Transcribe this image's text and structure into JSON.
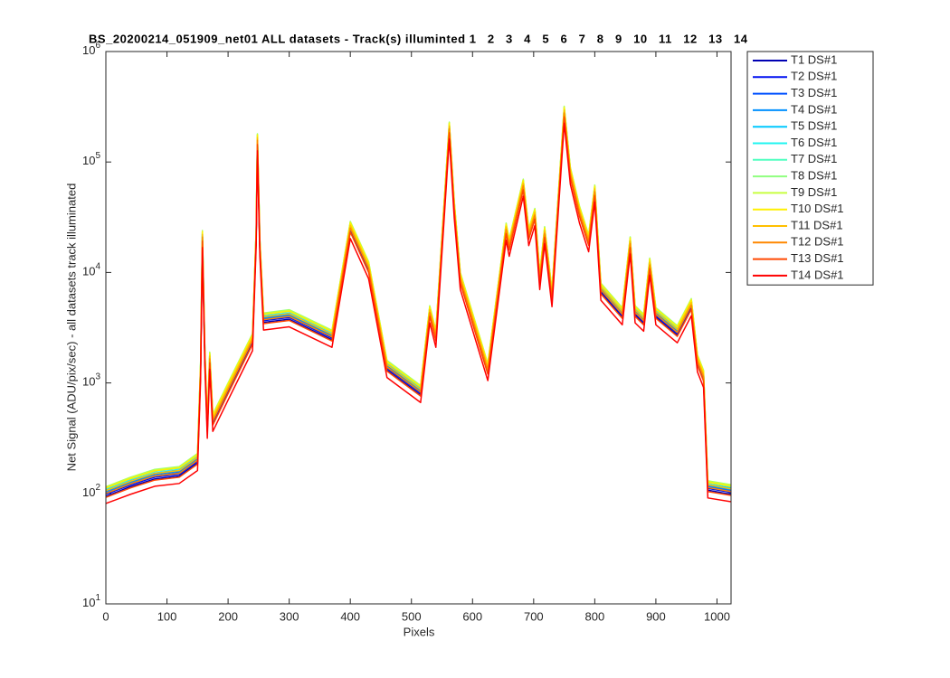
{
  "chart_data": {
    "type": "line",
    "title": "BS_20200214_051909_net01 ALL datasets - Track(s) illuminted 1   2   3   4   5   6   7   8   9   10   11   12   13   14",
    "xlabel": "Pixels",
    "ylabel": "Net Signal (ADU/pix/sec) - all datasets track illuminated",
    "log_y": true,
    "grid": false,
    "legend": "northeastoutside",
    "xlim": [
      0,
      1023
    ],
    "xticks": [
      0,
      100,
      200,
      300,
      400,
      500,
      600,
      700,
      800,
      900,
      1000
    ],
    "ylim": [
      10,
      1000000
    ],
    "yticks": [
      {
        "value": 10,
        "label": "10^1"
      },
      {
        "value": 100,
        "label": "10^2"
      },
      {
        "value": 1000,
        "label": "10^3"
      },
      {
        "value": 10000,
        "label": "10^4"
      },
      {
        "value": 100000,
        "label": "10^5"
      },
      {
        "value": 1000000,
        "label": "10^6"
      }
    ],
    "x": [
      0,
      40,
      80,
      120,
      150,
      155,
      158,
      162,
      166,
      170,
      175,
      200,
      240,
      246,
      248,
      252,
      258,
      300,
      370,
      400,
      430,
      460,
      515,
      530,
      540,
      562,
      570,
      580,
      625,
      655,
      660,
      683,
      692,
      702,
      710,
      718,
      730,
      750,
      760,
      775,
      790,
      800,
      810,
      845,
      858,
      866,
      880,
      890,
      900,
      935,
      958,
      968,
      978,
      985,
      1023
    ],
    "series": [
      {
        "name": "T1 DS#1",
        "color": "#0000b3",
        "values": [
          94,
          115,
          135,
          144,
          189,
          1230,
          19700,
          1640,
          369,
          1560,
          426,
          820,
          2300,
          20500,
          148000,
          16400,
          3530,
          3770,
          2460,
          23800,
          10250,
          1310,
          779,
          4100,
          2460,
          189000,
          36900,
          8200,
          1230,
          23000,
          16400,
          57400,
          20500,
          31200,
          8200,
          21300,
          5740,
          262000,
          73800,
          32800,
          18000,
          50800,
          6560,
          3940,
          17200,
          4100,
          3440,
          11100,
          3940,
          2710,
          4760,
          1480,
          1070,
          107,
          98
        ]
      },
      {
        "name": "T2 DS#1",
        "color": "#0010f0",
        "values": [
          98,
          119,
          140,
          149,
          196,
          1280,
          20400,
          1700,
          383,
          1620,
          442,
          850,
          2380,
          21300,
          153000,
          17000,
          3660,
          3910,
          2550,
          24700,
          10600,
          1360,
          808,
          4250,
          2550,
          196000,
          38300,
          8500,
          1280,
          23800,
          17000,
          59500,
          21300,
          32300,
          8500,
          22100,
          5950,
          272000,
          76500,
          34000,
          18700,
          52700,
          6800,
          4080,
          17900,
          4250,
          3570,
          11500,
          4080,
          2810,
          4930,
          1530,
          1110,
          111,
          102
        ]
      },
      {
        "name": "T3 DS#1",
        "color": "#0050ff",
        "values": [
          101,
          123,
          145,
          154,
          202,
          1320,
          21100,
          1760,
          396,
          1670,
          458,
          880,
          2460,
          22000,
          158000,
          17600,
          3780,
          4050,
          2640,
          25500,
          11000,
          1410,
          836,
          4400,
          2640,
          202000,
          39600,
          8800,
          1320,
          24600,
          17600,
          61600,
          22000,
          33400,
          8800,
          22900,
          6160,
          282000,
          79200,
          35200,
          19400,
          54600,
          7040,
          4220,
          18500,
          4400,
          3700,
          11900,
          4220,
          2900,
          5100,
          1580,
          1140,
          114,
          106
        ]
      },
      {
        "name": "T4 DS#1",
        "color": "#0090ff",
        "values": [
          104,
          126,
          149,
          158,
          207,
          1350,
          21600,
          1800,
          405,
          1710,
          468,
          900,
          2520,
          22500,
          162000,
          18000,
          3870,
          4140,
          2700,
          26100,
          11300,
          1440,
          855,
          4500,
          2700,
          207000,
          40500,
          9000,
          1350,
          25200,
          18000,
          63000,
          22500,
          34200,
          9000,
          23400,
          6300,
          288000,
          81000,
          36000,
          19800,
          55800,
          7200,
          4320,
          18900,
          4500,
          3780,
          12200,
          4320,
          2970,
          5220,
          1620,
          1170,
          117,
          108
        ]
      },
      {
        "name": "T5 DS#1",
        "color": "#00c8ff",
        "values": [
          107,
          130,
          153,
          163,
          214,
          1400,
          22300,
          1860,
          419,
          1770,
          484,
          930,
          2600,
          23300,
          167000,
          18600,
          4000,
          4280,
          2790,
          27000,
          11600,
          1490,
          884,
          4650,
          2790,
          214000,
          41900,
          9300,
          1400,
          26000,
          18600,
          65100,
          23300,
          35300,
          9300,
          24200,
          6510,
          298000,
          83700,
          37200,
          20500,
          57700,
          7440,
          4460,
          19500,
          4650,
          3910,
          12600,
          4460,
          3070,
          5390,
          1670,
          1210,
          121,
          112
        ]
      },
      {
        "name": "T6 DS#1",
        "color": "#20f5f0",
        "values": [
          110,
          134,
          158,
          168,
          221,
          1440,
          23000,
          1920,
          432,
          1820,
          499,
          960,
          2690,
          24000,
          173000,
          19200,
          4130,
          4420,
          2880,
          27800,
          12000,
          1540,
          912,
          4800,
          2880,
          221000,
          43200,
          9600,
          1440,
          26900,
          19200,
          67200,
          24000,
          36500,
          9600,
          25000,
          6720,
          307000,
          86400,
          38400,
          21100,
          59500,
          7680,
          4610,
          20200,
          4800,
          4030,
          13000,
          4610,
          3170,
          5570,
          1730,
          1250,
          125,
          115
        ]
      },
      {
        "name": "T7 DS#1",
        "color": "#50ffc0",
        "values": [
          113,
          137,
          162,
          172,
          225,
          1470,
          23500,
          1960,
          441,
          1860,
          510,
          980,
          2740,
          24500,
          176000,
          19600,
          4210,
          4510,
          2940,
          28400,
          12300,
          1570,
          931,
          4900,
          2940,
          225000,
          44100,
          9800,
          1470,
          27400,
          19600,
          68600,
          24500,
          37200,
          9800,
          25500,
          6860,
          314000,
          88200,
          39200,
          21600,
          60800,
          7840,
          4700,
          20600,
          4900,
          4120,
          13200,
          4700,
          3230,
          5680,
          1760,
          1270,
          127,
          118
        ]
      },
      {
        "name": "T8 DS#1",
        "color": "#90ff80",
        "values": [
          115,
          140,
          165,
          175,
          230,
          1500,
          24000,
          2000,
          450,
          1900,
          520,
          1000,
          2800,
          25000,
          180000,
          20000,
          4300,
          4600,
          3000,
          29000,
          12500,
          1600,
          950,
          5000,
          3000,
          230000,
          45000,
          10000,
          1500,
          28000,
          20000,
          70000,
          25000,
          38000,
          10000,
          26000,
          7000,
          320000,
          90000,
          40000,
          22000,
          62000,
          8000,
          4800,
          21000,
          5000,
          4200,
          13500,
          4800,
          3300,
          5800,
          1800,
          1300,
          130,
          120
        ]
      },
      {
        "name": "T9 DS#1",
        "color": "#c8ff40",
        "values": [
          114,
          139,
          163,
          173,
          228,
          1490,
          23800,
          1980,
          446,
          1880,
          515,
          990,
          2770,
          24800,
          178000,
          19800,
          4260,
          4550,
          2970,
          28700,
          12400,
          1580,
          941,
          4950,
          2970,
          228000,
          44600,
          9900,
          1490,
          27700,
          19800,
          69300,
          24800,
          37600,
          9900,
          25700,
          6930,
          317000,
          89100,
          39600,
          21800,
          61400,
          7920,
          4750,
          20800,
          4950,
          4160,
          13400,
          4750,
          3270,
          5740,
          1780,
          1290,
          129,
          119
        ]
      },
      {
        "name": "T10 DS#1",
        "color": "#fff000",
        "values": [
          112,
          136,
          160,
          170,
          223,
          1460,
          23300,
          1940,
          437,
          1840,
          504,
          970,
          2720,
          24300,
          175000,
          19400,
          4170,
          4460,
          2910,
          28100,
          12100,
          1550,
          922,
          4850,
          2910,
          223000,
          43700,
          9700,
          1460,
          27200,
          19400,
          67900,
          24300,
          36900,
          9700,
          25200,
          6790,
          310000,
          87300,
          38800,
          21300,
          60100,
          7760,
          4660,
          20400,
          4850,
          4070,
          13100,
          4660,
          3200,
          5630,
          1750,
          1260,
          126,
          116
        ]
      },
      {
        "name": "T11 DS#1",
        "color": "#ffc000",
        "values": [
          106,
          129,
          152,
          161,
          212,
          1380,
          22100,
          1840,
          414,
          1750,
          478,
          920,
          2580,
          23000,
          166000,
          18400,
          3960,
          4230,
          2760,
          26700,
          11500,
          1470,
          874,
          4600,
          2760,
          212000,
          41400,
          9200,
          1380,
          25800,
          18400,
          64400,
          23000,
          35000,
          9200,
          23900,
          6440,
          294000,
          82800,
          36800,
          20200,
          57000,
          7360,
          4420,
          19300,
          4600,
          3860,
          12400,
          4420,
          3040,
          5340,
          1660,
          1200,
          120,
          110
        ]
      },
      {
        "name": "T12 DS#1",
        "color": "#ff8800",
        "values": [
          100,
          122,
          144,
          152,
          200,
          1310,
          20900,
          1740,
          392,
          1650,
          452,
          870,
          2440,
          21800,
          157000,
          17400,
          3740,
          4000,
          2610,
          25200,
          10900,
          1390,
          827,
          4350,
          2610,
          200000,
          39200,
          8700,
          1310,
          24400,
          17400,
          60900,
          21800,
          33100,
          8700,
          22600,
          6090,
          278000,
          78300,
          34800,
          19100,
          53900,
          6960,
          4180,
          18300,
          4350,
          3650,
          11700,
          4180,
          2870,
          5050,
          1570,
          1130,
          113,
          104
        ]
      },
      {
        "name": "T13 DS#1",
        "color": "#ff4800",
        "values": [
          92,
          112,
          132,
          140,
          184,
          1200,
          19200,
          1600,
          360,
          1520,
          416,
          800,
          2240,
          20000,
          144000,
          16000,
          3440,
          3680,
          2400,
          23200,
          10000,
          1280,
          760,
          4000,
          2400,
          184000,
          36000,
          8000,
          1200,
          22400,
          16000,
          56000,
          20000,
          30400,
          8000,
          20800,
          5600,
          256000,
          72000,
          32000,
          17600,
          49600,
          6400,
          3840,
          16800,
          4000,
          3360,
          10800,
          3840,
          2640,
          4640,
          1440,
          1040,
          104,
          96
        ]
      },
      {
        "name": "T14 DS#1",
        "color": "#ff0000",
        "values": [
          81,
          98,
          116,
          123,
          161,
          1050,
          16800,
          1400,
          315,
          1330,
          364,
          700,
          1960,
          17500,
          126000,
          14000,
          3010,
          3220,
          2100,
          20300,
          8750,
          1120,
          665,
          3500,
          2100,
          161000,
          31500,
          7000,
          1050,
          19600,
          14000,
          49000,
          17500,
          26600,
          7000,
          18200,
          4900,
          224000,
          63000,
          28000,
          15400,
          43400,
          5600,
          3360,
          14700,
          3500,
          2940,
          9450,
          3360,
          2310,
          4060,
          1260,
          910,
          91,
          84
        ]
      }
    ]
  }
}
